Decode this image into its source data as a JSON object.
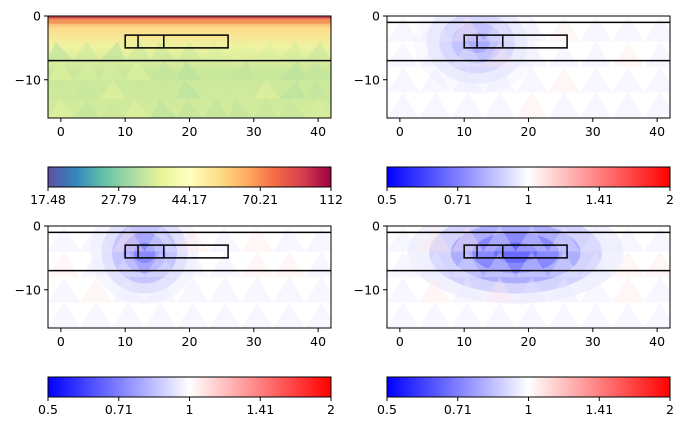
{
  "chart_data": [
    {
      "type": "heatmap",
      "title": "",
      "xlabel": "",
      "ylabel": "",
      "xlim": [
        -2,
        42
      ],
      "ylim": [
        -16,
        0
      ],
      "xticks": [
        "0",
        "10",
        "20",
        "30",
        "40"
      ],
      "yticks": [
        "0",
        "−10"
      ],
      "colormap": "Spectral_r",
      "colorbar": {
        "scale": "log",
        "range": [
          17.48,
          112
        ],
        "ticks": [
          "17.48",
          "27.79",
          "44.17",
          "70.21",
          "112"
        ]
      },
      "lines": {
        "surface_y": 0,
        "layer_boundary_y": -7
      },
      "boxes": [
        {
          "x": [
            10,
            26
          ],
          "y": [
            -5,
            -3
          ],
          "dividers_x": [
            12,
            16
          ]
        }
      ]
    },
    {
      "type": "heatmap",
      "title": "",
      "xlabel": "",
      "ylabel": "",
      "xlim": [
        -2,
        42
      ],
      "ylim": [
        -16,
        0
      ],
      "xticks": [
        "0",
        "10",
        "20",
        "30",
        "40"
      ],
      "yticks": [
        "0",
        "−10"
      ],
      "colormap": "bwr",
      "colorbar": {
        "scale": "log",
        "range": [
          0.5,
          2
        ],
        "ticks": [
          "0.5",
          "0.71",
          "1",
          "1.41",
          "2"
        ]
      },
      "lines": {
        "surface_y": -1,
        "layer_boundary_y": -7
      },
      "boxes": [
        {
          "x": [
            10,
            26
          ],
          "y": [
            -5,
            -3
          ],
          "dividers_x": [
            12,
            16
          ]
        }
      ]
    },
    {
      "type": "heatmap",
      "title": "",
      "xlabel": "",
      "ylabel": "",
      "xlim": [
        -2,
        42
      ],
      "ylim": [
        -16,
        0
      ],
      "xticks": [
        "0",
        "10",
        "20",
        "30",
        "40"
      ],
      "yticks": [
        "0",
        "−10"
      ],
      "colormap": "bwr",
      "colorbar": {
        "scale": "log",
        "range": [
          0.5,
          2
        ],
        "ticks": [
          "0.5",
          "0.71",
          "1",
          "1.41",
          "2"
        ]
      },
      "lines": {
        "surface_y": -1,
        "layer_boundary_y": -7
      },
      "boxes": [
        {
          "x": [
            10,
            26
          ],
          "y": [
            -5,
            -3
          ],
          "dividers_x": [
            12,
            16
          ]
        }
      ]
    },
    {
      "type": "heatmap",
      "title": "",
      "xlabel": "",
      "ylabel": "",
      "xlim": [
        -2,
        42
      ],
      "ylim": [
        -16,
        0
      ],
      "xticks": [
        "0",
        "10",
        "20",
        "30",
        "40"
      ],
      "yticks": [
        "0",
        "−10"
      ],
      "colormap": "bwr",
      "colorbar": {
        "scale": "log",
        "range": [
          0.5,
          2
        ],
        "ticks": [
          "0.5",
          "0.71",
          "1",
          "1.41",
          "2"
        ]
      },
      "lines": {
        "surface_y": -1,
        "layer_boundary_y": -7
      },
      "boxes": [
        {
          "x": [
            10,
            26
          ],
          "y": [
            -5,
            -3
          ],
          "dividers_x": [
            12,
            16
          ]
        }
      ]
    }
  ]
}
